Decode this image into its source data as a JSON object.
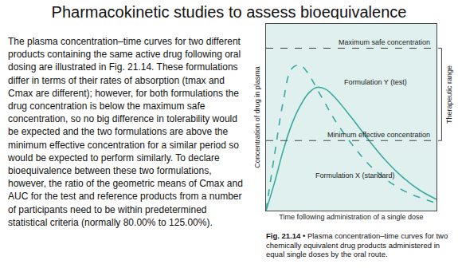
{
  "slide": {
    "title": "Pharmacokinetic studies to assess bioequivalence",
    "text": "The plasma concentration–time curves for two different products containing the same active drug following oral dosing are illustrated in Fig. 21.14. These formulations differ in terms of their rates of absorption (tmax and Cmax are different); however, for both formulations the drug concentration is below the maximum safe concentration, so no big difference in tolerability would be expected and the two formulations are above the minimum effective concentration for a similar period so would be expected to perform similarly. To declare bioequivalence between these two formulations, however, the ratio of the geometric means of Cmax and AUC for the test and reference products from a number of participants need to be within predetermined statistical criteria (normally 80.00% to 125.00%)."
  },
  "caption": {
    "label": "Fig. 21.14 •",
    "text": "Plasma concentration–time curves for two chemically equivalent drug products administered in equal single doses by the oral route."
  },
  "chart_data": {
    "type": "line",
    "x_label": "Time following administration of a single dose",
    "y_label": "Concentration of drug in plasma",
    "x": [
      0,
      0.5,
      1,
      1.5,
      2,
      2.5,
      3,
      3.5,
      4,
      5,
      6,
      7,
      8,
      9,
      10
    ],
    "series": [
      {
        "name": "Formulation Y (test)",
        "color": "#3aa99f",
        "line_style": "dashed",
        "values": [
          0,
          3.0,
          5.8,
          7.6,
          7.8,
          7.3,
          6.5,
          5.7,
          4.9,
          3.6,
          2.5,
          1.7,
          1.1,
          0.7,
          0.4
        ]
      },
      {
        "name": "Formulation X (standard)",
        "color": "#3aa99f",
        "line_style": "solid",
        "values": [
          0,
          1.5,
          3.2,
          4.6,
          5.6,
          6.3,
          6.6,
          6.5,
          6.1,
          5.0,
          3.8,
          2.7,
          1.8,
          1.1,
          0.6
        ]
      }
    ],
    "reference_lines": [
      {
        "label": "Maximum safe concentration",
        "value": 8.7
      },
      {
        "label": "Minimum effective concentration",
        "value": 3.75
      }
    ],
    "range_label": "Therapeutic range",
    "xlim": [
      0,
      10
    ],
    "ylim": [
      0,
      10
    ],
    "tick_labels": false,
    "grid": false
  }
}
